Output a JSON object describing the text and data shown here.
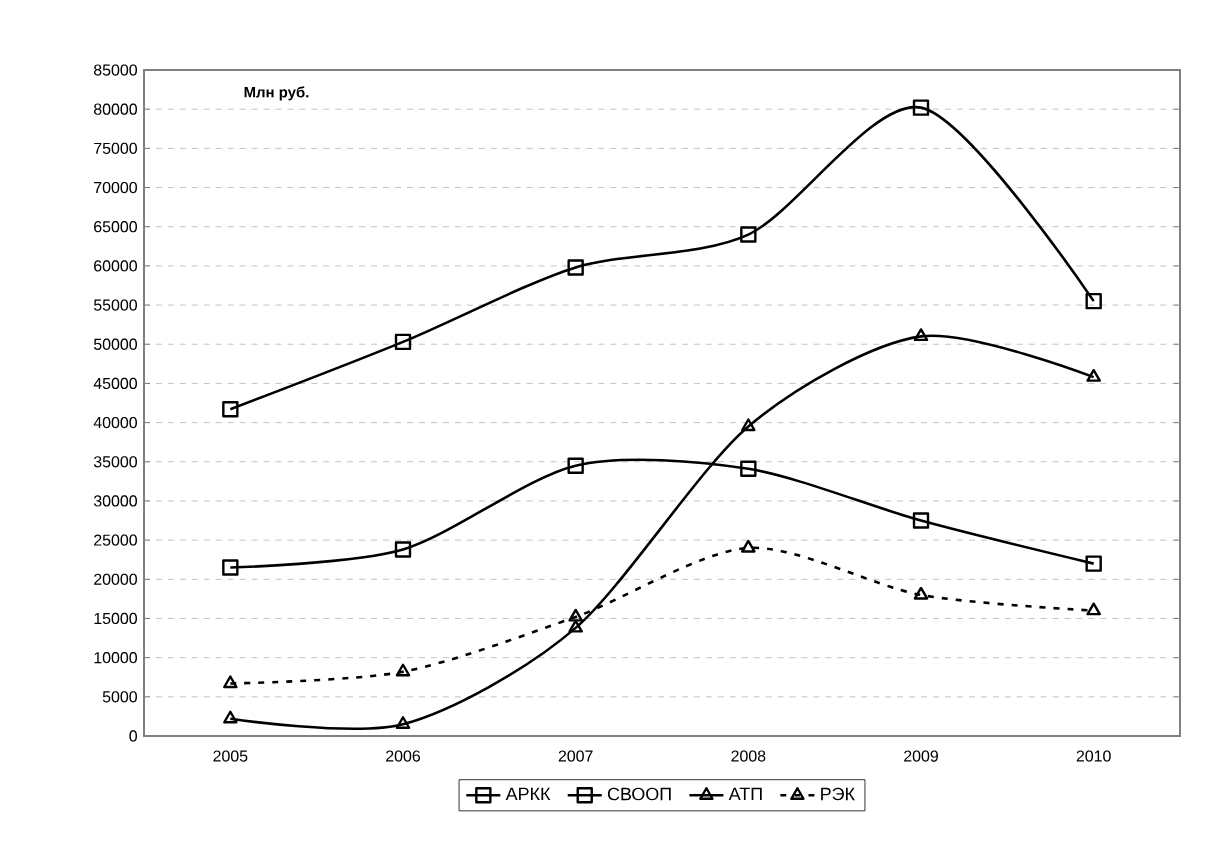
{
  "chart_data": {
    "type": "line",
    "annotations": [
      "Млн руб."
    ],
    "categories": [
      "2005",
      "2006",
      "2007",
      "2008",
      "2009",
      "2010"
    ],
    "series": [
      {
        "name": "АРКК",
        "color": "#000000",
        "marker": "square",
        "line_style": "solid",
        "values": [
          41700,
          50300,
          59800,
          64000,
          80200,
          55500
        ]
      },
      {
        "name": "СВООП",
        "color": "#000000",
        "marker": "square",
        "line_style": "solid",
        "values": [
          21500,
          23800,
          34500,
          34100,
          27500,
          22000
        ]
      },
      {
        "name": "АТП",
        "color": "#000000",
        "marker": "triangle",
        "line_style": "solid",
        "values": [
          2200,
          1500,
          13800,
          39500,
          51000,
          45800
        ]
      },
      {
        "name": "РЭК",
        "color": "#000000",
        "marker": "triangle",
        "line_style": "dashed",
        "values": [
          6700,
          8200,
          15200,
          24000,
          18000,
          16000
        ]
      }
    ],
    "ylim": [
      0,
      85000
    ],
    "yticks": [
      0,
      5000,
      10000,
      15000,
      20000,
      25000,
      30000,
      35000,
      40000,
      45000,
      50000,
      55000,
      60000,
      65000,
      70000,
      75000,
      80000,
      85000
    ],
    "grid": "y",
    "legend": "bottom"
  }
}
